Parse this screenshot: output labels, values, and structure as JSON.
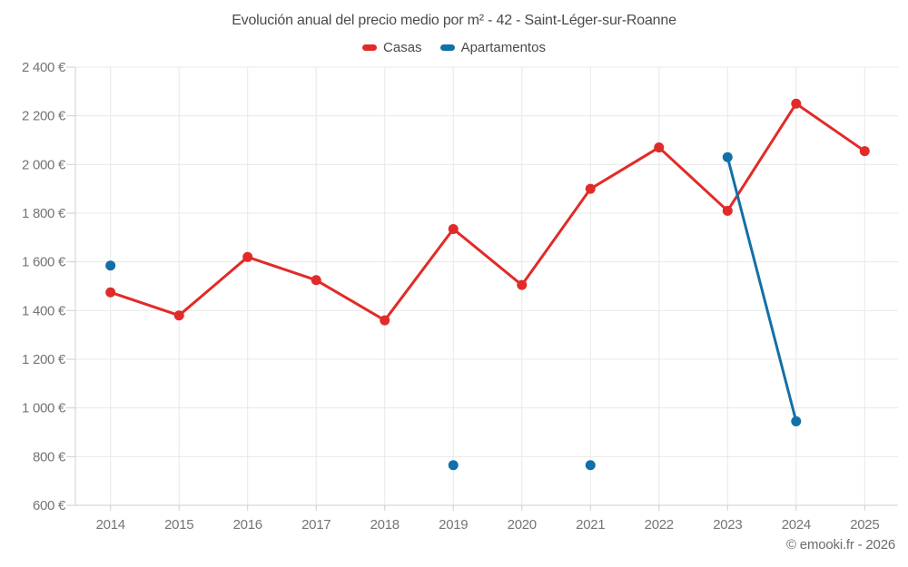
{
  "chart_data": {
    "type": "line",
    "title": "Evolución anual del precio medio por m² - 42 - Saint-Léger-sur-Roanne",
    "categories": [
      "2014",
      "2015",
      "2016",
      "2017",
      "2018",
      "2019",
      "2020",
      "2021",
      "2022",
      "2023",
      "2024",
      "2025"
    ],
    "series": [
      {
        "name": "Casas",
        "color": "#e12b28",
        "values": [
          1475,
          1380,
          1620,
          1525,
          1360,
          1735,
          1505,
          1900,
          2070,
          1810,
          2250,
          2055
        ]
      },
      {
        "name": "Apartamentos",
        "color": "#1270a8",
        "values": [
          1585,
          null,
          null,
          null,
          null,
          765,
          null,
          765,
          null,
          2030,
          945,
          null
        ]
      }
    ],
    "xlabel": "",
    "ylabel": "",
    "ylim": [
      600,
      2400
    ],
    "ytick_values": [
      600,
      800,
      1000,
      1200,
      1400,
      1600,
      1800,
      2000,
      2200,
      2400
    ],
    "ytick_labels": [
      "600 €",
      "800 €",
      "1 000 €",
      "1 200 €",
      "1 400 €",
      "1 600 €",
      "1 800 €",
      "2 000 €",
      "2 200 €",
      "2 400 €"
    ],
    "grid": true,
    "legend_position": "top",
    "attribution": "© emooki.fr - 2026"
  },
  "colors": {
    "grid": "#e8e8e8",
    "axis": "#cfcfcf",
    "tick_text": "#757575"
  }
}
